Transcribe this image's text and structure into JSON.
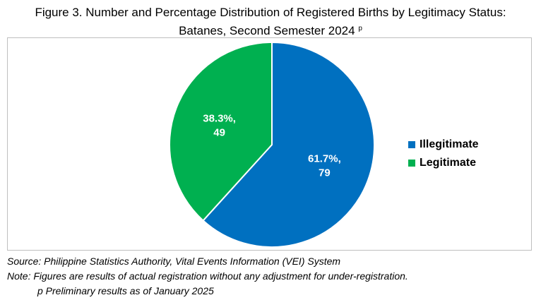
{
  "title_line1": "Figure 3. Number and Percentage Distribution of Registered Births by Legitimacy Status:",
  "title_line2": "Batanes, Second Semester 2024",
  "title_marker": "p",
  "chart_data": {
    "type": "pie",
    "categories": [
      "Illegitimate",
      "Legitimate"
    ],
    "values": [
      79,
      49
    ],
    "percentages": [
      61.7,
      38.3
    ],
    "data_labels": [
      [
        "61.7%,",
        "79"
      ],
      [
        "38.3%,",
        "49"
      ]
    ],
    "colors": [
      "#0070c0",
      "#00b050"
    ],
    "start": "12 o'clock, clockwise",
    "legend_position": "right"
  },
  "source": "Source: Philippine Statistics Authority, Vital Events Information (VEI) System",
  "note": "Note: Figures are results of actual registration without any adjustment for under-registration.",
  "preliminary": "p Preliminary results as of January 2025"
}
